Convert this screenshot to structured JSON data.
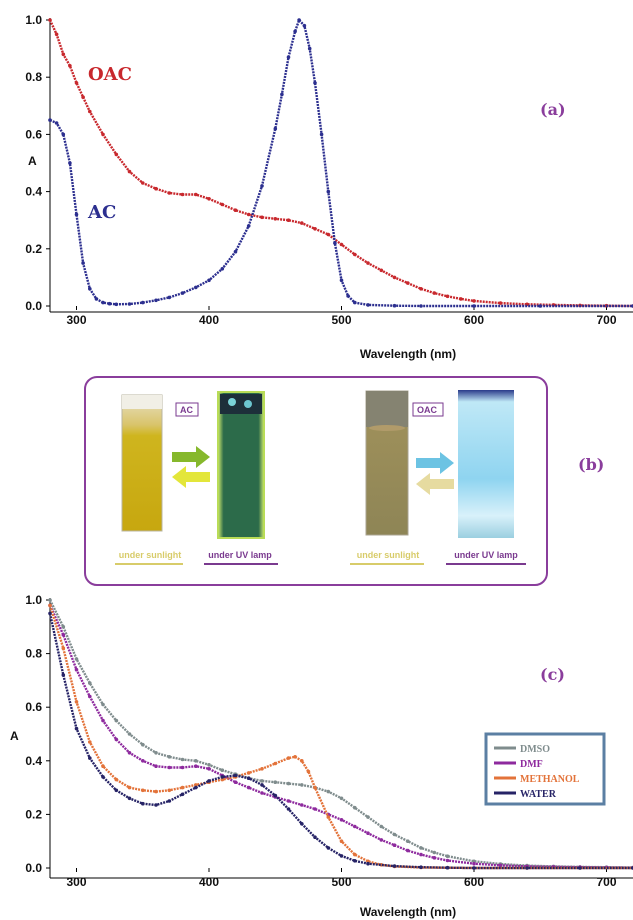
{
  "chart_data": [
    {
      "type": "line",
      "panel_label": "(a)",
      "xlabel": "Wavelength (nm)",
      "ylabel": "A",
      "xlim": [
        280,
        720
      ],
      "ylim": [
        0,
        1.0
      ],
      "xticks": [
        300,
        400,
        500,
        600,
        700
      ],
      "yticks": [
        0.0,
        0.2,
        0.4,
        0.6,
        0.8,
        1.0
      ],
      "ytick_labels": [
        "0.0",
        "0.2",
        "0.4",
        "0.6",
        "0.8",
        "1.0"
      ],
      "series": [
        {
          "name": "OAC",
          "color": "#c8282d",
          "x": [
            280,
            285,
            290,
            295,
            300,
            305,
            310,
            320,
            330,
            340,
            350,
            360,
            370,
            380,
            390,
            400,
            410,
            420,
            430,
            440,
            450,
            460,
            470,
            480,
            490,
            500,
            510,
            520,
            530,
            540,
            550,
            560,
            570,
            580,
            590,
            600,
            620,
            640,
            660,
            680,
            700,
            720
          ],
          "y": [
            1.0,
            0.95,
            0.88,
            0.84,
            0.78,
            0.73,
            0.68,
            0.6,
            0.53,
            0.47,
            0.43,
            0.41,
            0.395,
            0.39,
            0.39,
            0.375,
            0.355,
            0.335,
            0.32,
            0.31,
            0.305,
            0.3,
            0.29,
            0.27,
            0.25,
            0.215,
            0.18,
            0.15,
            0.125,
            0.1,
            0.08,
            0.06,
            0.045,
            0.034,
            0.025,
            0.018,
            0.01,
            0.006,
            0.004,
            0.002,
            0.001,
            0.0
          ]
        },
        {
          "name": "AC",
          "color": "#2c2f8f",
          "x": [
            280,
            285,
            290,
            295,
            300,
            305,
            310,
            315,
            320,
            325,
            330,
            340,
            350,
            360,
            370,
            380,
            390,
            400,
            410,
            420,
            430,
            440,
            450,
            455,
            460,
            465,
            468,
            472,
            476,
            480,
            485,
            490,
            495,
            500,
            505,
            510,
            520,
            540,
            560,
            600,
            650,
            720
          ],
          "y": [
            0.65,
            0.64,
            0.6,
            0.5,
            0.32,
            0.15,
            0.06,
            0.025,
            0.012,
            0.008,
            0.006,
            0.007,
            0.012,
            0.02,
            0.03,
            0.045,
            0.065,
            0.09,
            0.13,
            0.19,
            0.28,
            0.42,
            0.62,
            0.74,
            0.87,
            0.96,
            1.0,
            0.98,
            0.9,
            0.78,
            0.6,
            0.4,
            0.22,
            0.09,
            0.035,
            0.012,
            0.004,
            0.001,
            0.0,
            0.0,
            0.0,
            0.0
          ]
        }
      ]
    },
    {
      "type": "line",
      "panel_label": "(c)",
      "xlabel": "Wavelength (nm)",
      "ylabel": "A",
      "xlim": [
        280,
        720
      ],
      "ylim": [
        0,
        1.0
      ],
      "xticks": [
        300,
        400,
        500,
        600,
        700
      ],
      "yticks": [
        0.0,
        0.2,
        0.4,
        0.6,
        0.8,
        1.0
      ],
      "ytick_labels": [
        "0.0",
        "0.2",
        "0.4",
        "0.6",
        "0.8",
        "1.0"
      ],
      "series": [
        {
          "name": "DMSO",
          "color": "#7f8c8d",
          "x": [
            280,
            290,
            300,
            310,
            320,
            330,
            340,
            350,
            360,
            370,
            380,
            390,
            400,
            410,
            420,
            430,
            440,
            450,
            460,
            470,
            480,
            490,
            500,
            510,
            520,
            530,
            540,
            550,
            560,
            570,
            580,
            600,
            620,
            640,
            660,
            680,
            700,
            720
          ],
          "y": [
            1.0,
            0.9,
            0.78,
            0.69,
            0.61,
            0.55,
            0.5,
            0.46,
            0.43,
            0.415,
            0.405,
            0.4,
            0.385,
            0.365,
            0.35,
            0.335,
            0.325,
            0.32,
            0.315,
            0.31,
            0.3,
            0.285,
            0.26,
            0.225,
            0.19,
            0.155,
            0.125,
            0.1,
            0.075,
            0.058,
            0.044,
            0.025,
            0.015,
            0.009,
            0.006,
            0.004,
            0.003,
            0.002
          ]
        },
        {
          "name": "DMF",
          "color": "#8e2a9e",
          "x": [
            280,
            290,
            300,
            310,
            320,
            330,
            340,
            350,
            360,
            370,
            380,
            390,
            400,
            410,
            420,
            430,
            440,
            450,
            460,
            470,
            480,
            490,
            500,
            510,
            520,
            530,
            540,
            550,
            560,
            570,
            580,
            600,
            620,
            640,
            660,
            680,
            700,
            720
          ],
          "y": [
            0.98,
            0.87,
            0.74,
            0.64,
            0.55,
            0.48,
            0.43,
            0.4,
            0.38,
            0.375,
            0.375,
            0.38,
            0.37,
            0.345,
            0.32,
            0.3,
            0.28,
            0.265,
            0.25,
            0.235,
            0.22,
            0.2,
            0.18,
            0.155,
            0.13,
            0.105,
            0.085,
            0.065,
            0.05,
            0.038,
            0.028,
            0.016,
            0.01,
            0.006,
            0.004,
            0.003,
            0.002,
            0.001
          ]
        },
        {
          "name": "METHANOL",
          "color": "#e3733a",
          "x": [
            280,
            290,
            300,
            310,
            320,
            330,
            340,
            350,
            360,
            370,
            380,
            390,
            400,
            410,
            420,
            430,
            440,
            450,
            460,
            465,
            470,
            475,
            480,
            490,
            500,
            510,
            520,
            530,
            540,
            560,
            580,
            600,
            640,
            680,
            720
          ],
          "y": [
            0.98,
            0.82,
            0.62,
            0.47,
            0.38,
            0.33,
            0.3,
            0.29,
            0.285,
            0.29,
            0.3,
            0.31,
            0.32,
            0.33,
            0.34,
            0.355,
            0.37,
            0.39,
            0.41,
            0.415,
            0.4,
            0.36,
            0.3,
            0.19,
            0.1,
            0.05,
            0.025,
            0.012,
            0.006,
            0.002,
            0.001,
            0.0,
            0.0,
            0.0,
            0.0
          ]
        },
        {
          "name": "WATER",
          "color": "#262366",
          "x": [
            280,
            290,
            300,
            310,
            320,
            330,
            340,
            350,
            360,
            370,
            380,
            390,
            400,
            410,
            420,
            430,
            440,
            450,
            460,
            470,
            480,
            490,
            500,
            510,
            520,
            540,
            560,
            580,
            600,
            640,
            680,
            720
          ],
          "y": [
            0.95,
            0.72,
            0.52,
            0.41,
            0.34,
            0.29,
            0.26,
            0.24,
            0.235,
            0.25,
            0.275,
            0.3,
            0.325,
            0.34,
            0.345,
            0.335,
            0.31,
            0.27,
            0.22,
            0.165,
            0.115,
            0.075,
            0.045,
            0.027,
            0.016,
            0.007,
            0.003,
            0.001,
            0.0,
            0.0,
            0.0,
            0.0
          ]
        }
      ]
    }
  ],
  "panel_b": {
    "label": "(b)",
    "ac_tag": "AC",
    "oac_tag": "OAC",
    "caption_sunlight_ac": "under sunlight",
    "caption_uv_ac": "under UV lamp",
    "caption_sunlight_oac": "under sunlight",
    "caption_uv_oac": "under UV lamp"
  },
  "colors": {
    "frame": "#8a3d9c",
    "caption_sunlight": "#d8cc6a",
    "caption_uv": "#7a3a8f",
    "legend_border": "#5b7fa3"
  }
}
